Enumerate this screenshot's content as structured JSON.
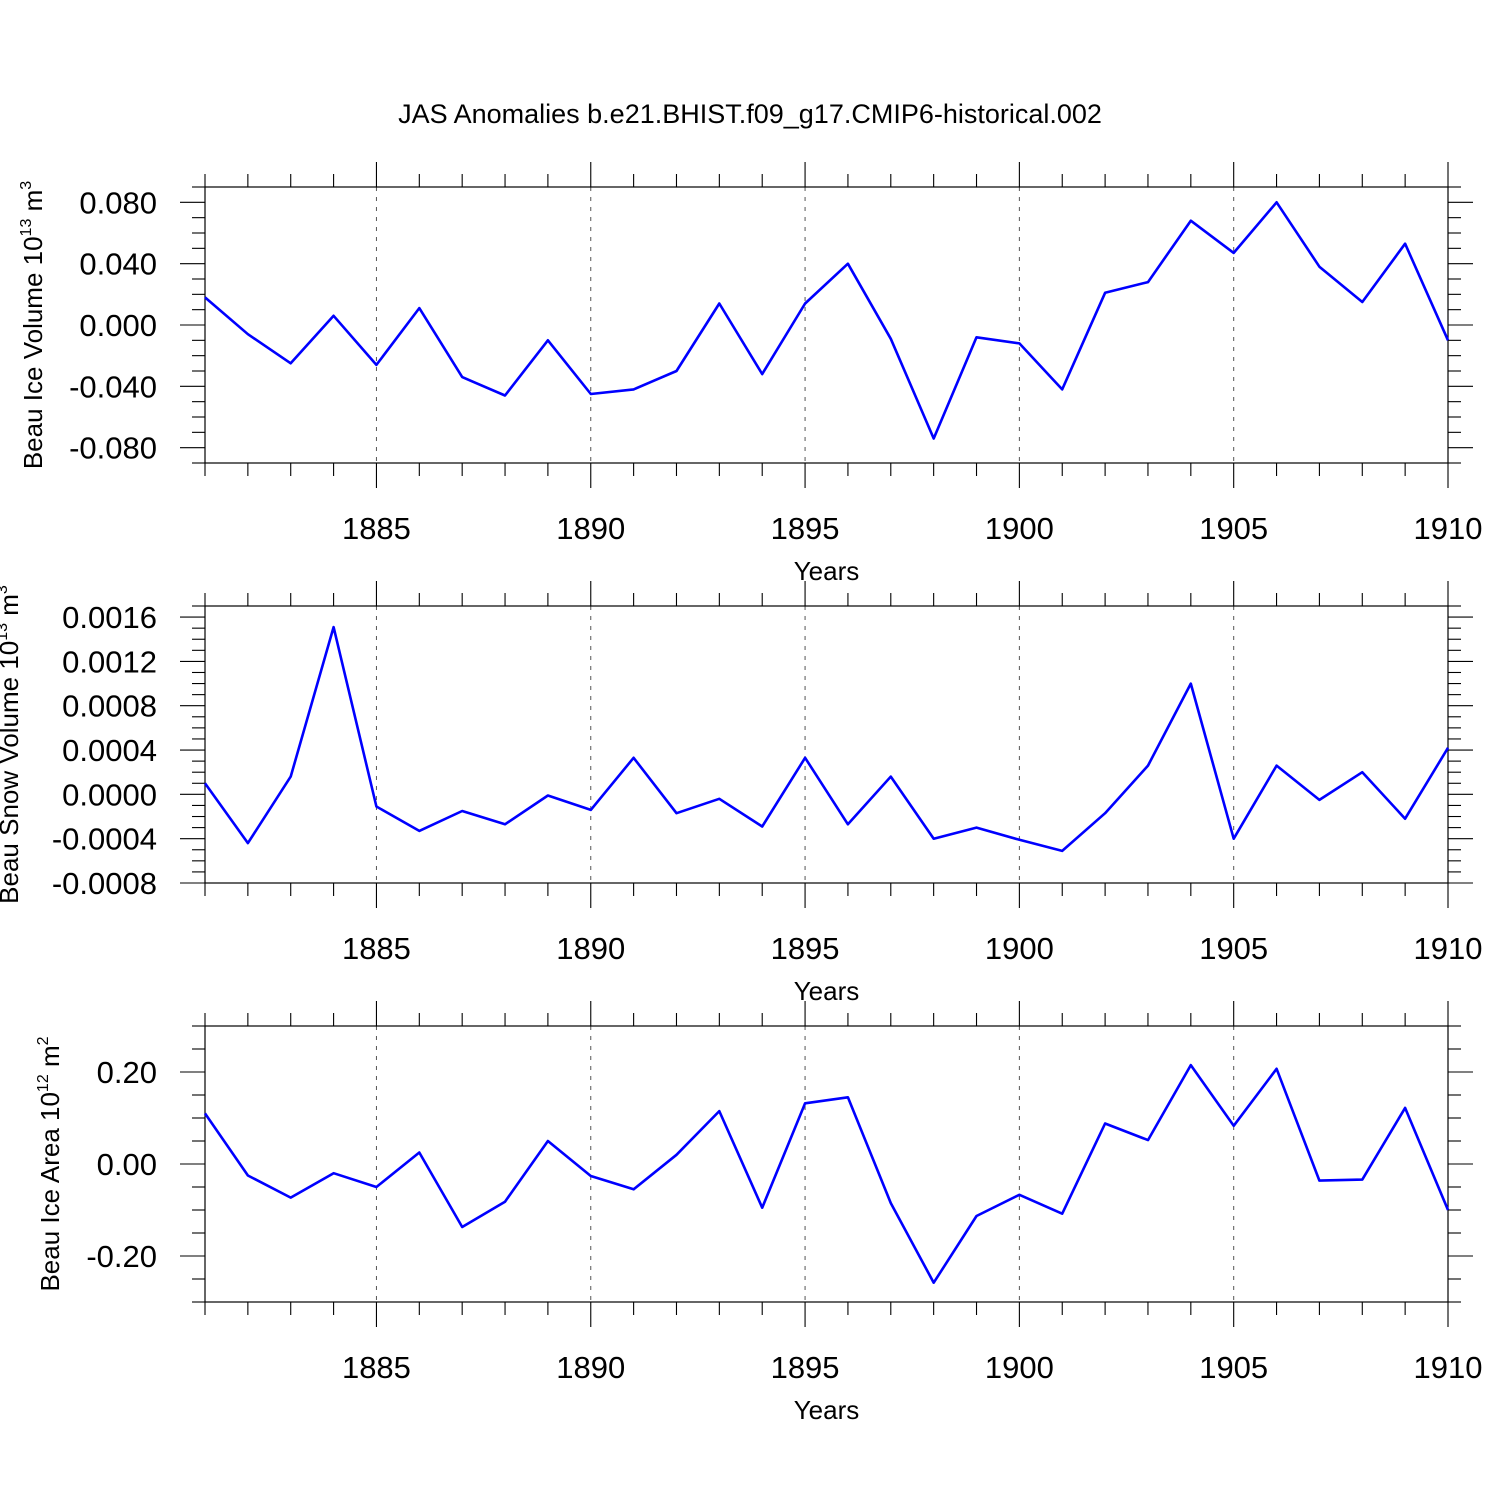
{
  "chart_data": [
    {
      "type": "line",
      "title": "JAS Anomalies b.e21.BHIST.f09_g17.CMIP6-historical.002",
      "ylabel": {
        "text": "Beau Ice Volume 10",
        "exponent": "13",
        "unit": "m",
        "unit_exponent": "3"
      },
      "xlabel": "Years",
      "xlim": [
        1881,
        1910
      ],
      "ylim": [
        -0.09,
        0.09
      ],
      "xticks": [
        1885,
        1890,
        1895,
        1900,
        1905,
        1910
      ],
      "xtick_labels": [
        "1885",
        "1890",
        "1895",
        "1900",
        "1905",
        "1910"
      ],
      "yticks": [
        -0.08,
        -0.04,
        0.0,
        0.04,
        0.08
      ],
      "ytick_labels": [
        "-0.080",
        "-0.040",
        "0.000",
        "0.040",
        "0.080"
      ],
      "y_minor_step": 0.01,
      "grid": "vertical dashed at major x ticks",
      "series": [
        {
          "name": "Beau Ice Volume",
          "color": "#0000ff",
          "x": [
            1881,
            1882,
            1883,
            1884,
            1885,
            1886,
            1887,
            1888,
            1889,
            1890,
            1891,
            1892,
            1893,
            1894,
            1895,
            1896,
            1897,
            1898,
            1899,
            1900,
            1901,
            1902,
            1903,
            1904,
            1905,
            1906,
            1907,
            1908,
            1909,
            1910
          ],
          "values": [
            0.018,
            -0.006,
            -0.025,
            0.006,
            -0.026,
            0.011,
            -0.034,
            -0.046,
            -0.01,
            -0.045,
            -0.042,
            -0.03,
            0.014,
            -0.032,
            0.014,
            0.04,
            -0.009,
            -0.074,
            -0.008,
            -0.012,
            -0.042,
            0.021,
            0.028,
            0.068,
            0.047,
            0.08,
            0.038,
            0.015,
            0.053,
            -0.01
          ]
        }
      ]
    },
    {
      "type": "line",
      "title": "",
      "ylabel": {
        "text": "Beau Snow Volume 10",
        "exponent": "13",
        "unit": "m",
        "unit_exponent": "3"
      },
      "xlabel": "Years",
      "xlim": [
        1881,
        1910
      ],
      "ylim": [
        -0.0008,
        0.0017
      ],
      "xticks": [
        1885,
        1890,
        1895,
        1900,
        1905,
        1910
      ],
      "xtick_labels": [
        "1885",
        "1890",
        "1895",
        "1900",
        "1905",
        "1910"
      ],
      "yticks": [
        -0.0008,
        -0.0004,
        0.0,
        0.0004,
        0.0008,
        0.0012,
        0.0016
      ],
      "ytick_labels": [
        "-0.0008",
        "-0.0004",
        "0.0000",
        "0.0004",
        "0.0008",
        "0.0012",
        "0.0016"
      ],
      "y_minor_step": 0.0001,
      "grid": "vertical dashed at major x ticks",
      "series": [
        {
          "name": "Beau Snow Volume",
          "color": "#0000ff",
          "x": [
            1881,
            1882,
            1883,
            1884,
            1885,
            1886,
            1887,
            1888,
            1889,
            1890,
            1891,
            1892,
            1893,
            1894,
            1895,
            1896,
            1897,
            1898,
            1899,
            1900,
            1901,
            1902,
            1903,
            1904,
            1905,
            1906,
            1907,
            1908,
            1909,
            1910
          ],
          "values": [
            0.0001,
            -0.00044,
            0.00016,
            0.00151,
            -0.00011,
            -0.00033,
            -0.00015,
            -0.00027,
            -1e-05,
            -0.00014,
            0.00033,
            -0.00017,
            -4e-05,
            -0.00029,
            0.00033,
            -0.00027,
            0.00016,
            -0.0004,
            -0.0003,
            -0.00041,
            -0.00051,
            -0.00017,
            0.00026,
            0.001,
            -0.0004,
            0.00026,
            -5e-05,
            0.0002,
            -0.00022,
            0.00042
          ]
        }
      ]
    },
    {
      "type": "line",
      "title": "",
      "ylabel": {
        "text": "Beau Ice Area 10",
        "exponent": "12",
        "unit": "m",
        "unit_exponent": "2"
      },
      "xlabel": "Years",
      "xlim": [
        1881,
        1910
      ],
      "ylim": [
        -0.3,
        0.3
      ],
      "xticks": [
        1885,
        1890,
        1895,
        1900,
        1905,
        1910
      ],
      "xtick_labels": [
        "1885",
        "1890",
        "1895",
        "1900",
        "1905",
        "1910"
      ],
      "yticks": [
        -0.2,
        0.0,
        0.2
      ],
      "ytick_labels": [
        "-0.20",
        "0.00",
        "0.20"
      ],
      "y_minor_step": 0.05,
      "grid": "vertical dashed at major x ticks",
      "series": [
        {
          "name": "Beau Ice Area",
          "color": "#0000ff",
          "x": [
            1881,
            1882,
            1883,
            1884,
            1885,
            1886,
            1887,
            1888,
            1889,
            1890,
            1891,
            1892,
            1893,
            1894,
            1895,
            1896,
            1897,
            1898,
            1899,
            1900,
            1901,
            1902,
            1903,
            1904,
            1905,
            1906,
            1907,
            1908,
            1909,
            1910
          ],
          "values": [
            0.11,
            -0.025,
            -0.073,
            -0.02,
            -0.05,
            0.025,
            -0.137,
            -0.082,
            0.05,
            -0.026,
            -0.055,
            0.02,
            0.115,
            -0.095,
            0.132,
            0.145,
            -0.085,
            -0.258,
            -0.113,
            -0.067,
            -0.108,
            0.088,
            0.052,
            0.215,
            0.083,
            0.207,
            -0.036,
            -0.034,
            0.122,
            -0.1
          ]
        }
      ]
    }
  ]
}
